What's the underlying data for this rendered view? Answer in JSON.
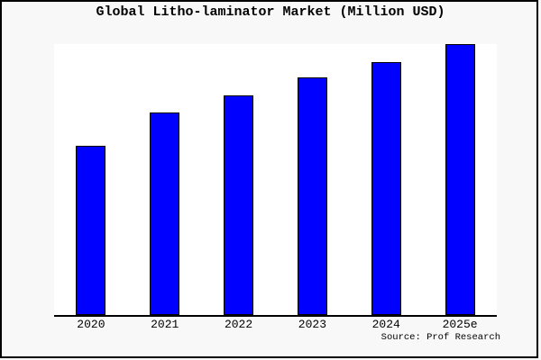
{
  "figure": {
    "background_color": "#f8f8f8",
    "plot_background_color": "#ffffff",
    "border_color": "#000000",
    "axis_color": "#000000",
    "text_color": "#000000"
  },
  "chart_data": {
    "type": "bar",
    "title": "Global Litho-laminator Market (Million USD)",
    "source_note": "Source: Prof Research",
    "series_name": "Global Litho-laminator Market",
    "categories": [
      "2020",
      "2021",
      "2022",
      "2023",
      "2024",
      "2025e"
    ],
    "values": [
      62.5,
      74.8,
      81.1,
      87.8,
      93.4,
      100.0
    ],
    "values_note": "y-axis has no tick labels in the chart; values are estimated bar heights as percent of the 2025e bar",
    "bar_color": "#0000ff",
    "bar_border_color": "#000000",
    "xlabel": "",
    "ylabel": "",
    "ylim": [
      0,
      100
    ],
    "grid": false,
    "legend": false
  }
}
